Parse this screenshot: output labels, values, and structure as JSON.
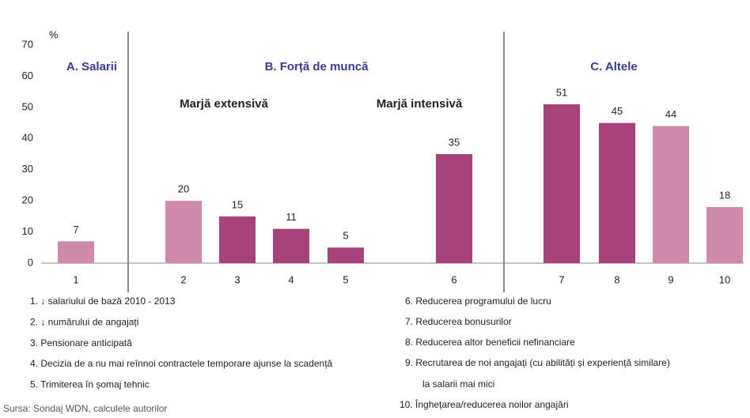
{
  "chart_data": {
    "type": "bar",
    "unit_label": "%",
    "categories": [
      "1",
      "2",
      "3",
      "4",
      "5",
      "6",
      "7",
      "8",
      "9",
      "10"
    ],
    "values": [
      7,
      20,
      15,
      11,
      5,
      35,
      51,
      45,
      44,
      18
    ],
    "colors": [
      "#cf8aab",
      "#cf8aab",
      "#a8437a",
      "#a8437a",
      "#a8437a",
      "#a8437a",
      "#a8437a",
      "#a8437a",
      "#cf8aab",
      "#cf8aab"
    ],
    "ylim": [
      0,
      70
    ],
    "yticks": [
      0,
      10,
      20,
      30,
      40,
      50,
      60,
      70
    ],
    "sections": [
      "A. Salarii",
      "B. Forță de muncă",
      "C. Altele"
    ],
    "subsections": [
      "Marjă extensivă",
      "Marjă intensivă"
    ],
    "notes_left": [
      "1. ↓ salariului de bază 2010 - 2013",
      "2. ↓ numărului de angajați",
      "3. Pensionare anticipată",
      "4. Decizia de a nu mai reînnoi contractele temporare ajunse la scadență",
      "5. Trimiterea în șomaj tehnic"
    ],
    "notes_right": [
      "6. Reducerea programului de lucru",
      "7. Reducerea bonusurilor",
      "8. Reducerea altor beneficii nefinanciare",
      "9. Recrutarea de noi angajați (cu abilități și experiență similare)",
      "la salarii mai mici",
      "10. Înghețarea/reducerea noilor angajări"
    ],
    "source": "Sursa: Sondaj WDN, calculele autorilor"
  }
}
